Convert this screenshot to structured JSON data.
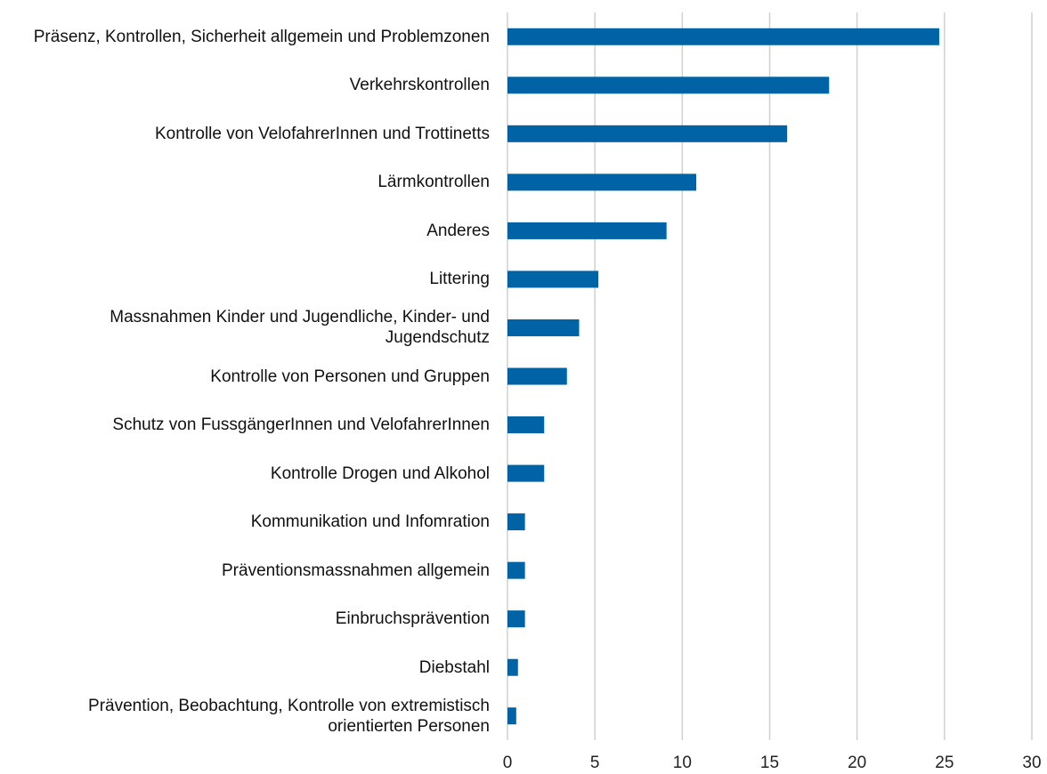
{
  "chart_data": {
    "type": "barh",
    "categories": [
      "Präsenz, Kontrollen, Sicherheit allgemein und Problemzonen",
      "Verkehrskontrollen",
      "Kontrolle von VelofahrerInnen und Trottinetts",
      "Lärmkontrollen",
      "Anderes",
      "Littering",
      "Massnahmen Kinder und Jugendliche, Kinder- und Jugendschutz",
      "Kontrolle von Personen und Gruppen",
      "Schutz von FussgängerInnen und VelofahrerInnen",
      "Kontrolle Drogen und Alkohol",
      "Kommunikation und Infomration",
      "Präventionsmassnahmen allgemein",
      "Einbruchsprävention",
      "Diebstahl",
      "Prävention, Beobachtung, Kontrolle von extremistisch orientierten Personen"
    ],
    "values": [
      24.7,
      18.4,
      16.0,
      10.8,
      9.1,
      5.2,
      4.1,
      3.4,
      2.1,
      2.1,
      1.0,
      1.0,
      1.0,
      0.6,
      0.5
    ],
    "color": "#0063a6",
    "xlim": [
      0,
      30
    ],
    "xticks": [
      0,
      5,
      10,
      15,
      20,
      25,
      30
    ],
    "grid": true
  }
}
